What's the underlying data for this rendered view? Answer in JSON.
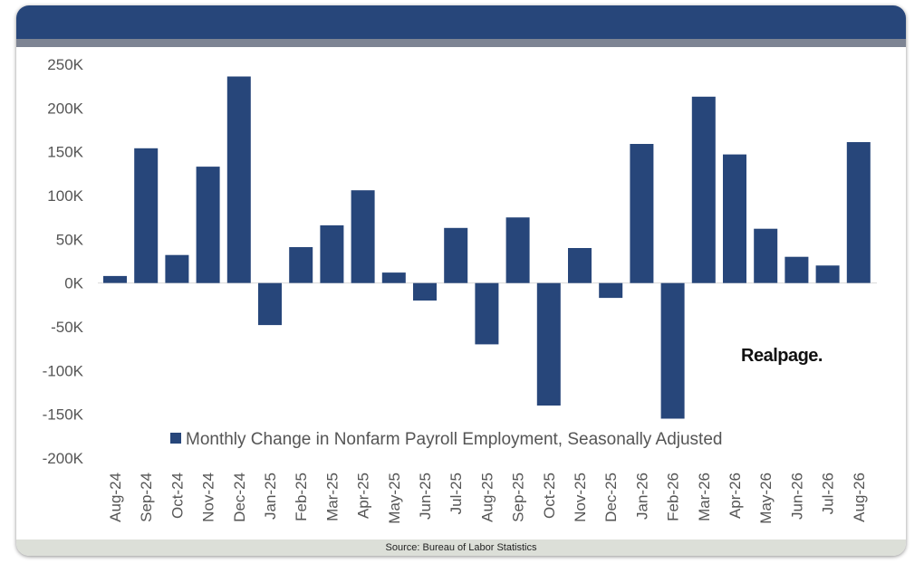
{
  "chart_data": {
    "type": "bar",
    "categories": [
      "Aug-24",
      "Sep-24",
      "Oct-24",
      "Nov-24",
      "Dec-24",
      "Jan-25",
      "Feb-25",
      "Mar-25",
      "Apr-25",
      "May-25",
      "Jun-25",
      "Jul-25",
      "Aug-25",
      "Sep-25",
      "Oct-25",
      "Nov-25",
      "Dec-25",
      "Jan-26",
      "Feb-26",
      "Mar-26",
      "Apr-26",
      "May-26",
      "Jun-26",
      "Jul-26",
      "Aug-26"
    ],
    "series": [
      {
        "name": "Monthly Change in Nonfarm Payroll Employment, Seasonally Adjusted",
        "values": [
          8000,
          154000,
          32000,
          133000,
          236000,
          -48000,
          41000,
          66000,
          106000,
          12000,
          -20000,
          63000,
          -70000,
          75000,
          -140000,
          40000,
          -17000,
          159000,
          -155000,
          213000,
          147000,
          62000,
          30000,
          20000,
          161000
        ],
        "color": "#27467a"
      }
    ],
    "yticks": [
      "250K",
      "200K",
      "150K",
      "100K",
      "50K",
      "0K",
      "-50K",
      "-100K",
      "-150K",
      "-200K"
    ],
    "ylim": [
      -200000,
      250000
    ],
    "grid": false,
    "legend_position": "bottom-center"
  },
  "logo": "Realpage.",
  "footer": {
    "source": "Source: Bureau of Labor Statistics"
  }
}
